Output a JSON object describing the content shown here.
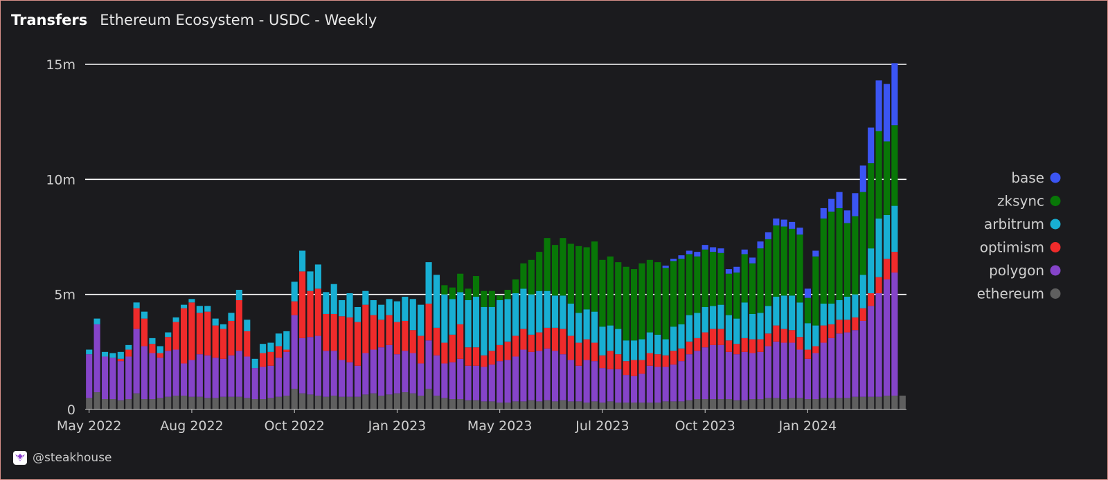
{
  "header": {
    "title": "Transfers",
    "subtitle": "Ethereum Ecosystem - USDC - Weekly"
  },
  "footer": {
    "handle": "@steakhouse"
  },
  "chart_data": {
    "type": "bar",
    "stacked": true,
    "grid": true,
    "legend_position": "right",
    "y_ticks": [
      "0",
      "5m",
      "10m",
      "15m"
    ],
    "ylim": [
      0,
      15.2
    ],
    "x_tick_labels": [
      {
        "label": "May 2022",
        "index": 0
      },
      {
        "label": "Aug 2022",
        "index": 13
      },
      {
        "label": "Oct 2022",
        "index": 26
      },
      {
        "label": "Jan 2023",
        "index": 39
      },
      {
        "label": "May 2023",
        "index": 52
      },
      {
        "label": "Jul 2023",
        "index": 65
      },
      {
        "label": "Oct 2023",
        "index": 78
      },
      {
        "label": "Jan 2024",
        "index": 91
      }
    ],
    "series": [
      {
        "name": "ethereum",
        "color": "#5f5f5f",
        "values": [
          0.5,
          0.75,
          0.45,
          0.45,
          0.4,
          0.45,
          0.7,
          0.45,
          0.45,
          0.5,
          0.55,
          0.6,
          0.6,
          0.55,
          0.55,
          0.5,
          0.5,
          0.55,
          0.55,
          0.55,
          0.5,
          0.45,
          0.45,
          0.5,
          0.55,
          0.6,
          0.9,
          0.7,
          0.65,
          0.6,
          0.55,
          0.6,
          0.55,
          0.55,
          0.55,
          0.65,
          0.7,
          0.6,
          0.65,
          0.7,
          0.75,
          0.7,
          0.6,
          0.9,
          0.6,
          0.5,
          0.45,
          0.45,
          0.4,
          0.4,
          0.35,
          0.35,
          0.3,
          0.3,
          0.35,
          0.35,
          0.4,
          0.35,
          0.4,
          0.35,
          0.4,
          0.35,
          0.35,
          0.3,
          0.35,
          0.3,
          0.35,
          0.3,
          0.3,
          0.3,
          0.3,
          0.3,
          0.3,
          0.35,
          0.35,
          0.35,
          0.4,
          0.45,
          0.45,
          0.45,
          0.45,
          0.45,
          0.4,
          0.4,
          0.45,
          0.45,
          0.5,
          0.5,
          0.45,
          0.5,
          0.5,
          0.45,
          0.45,
          0.5,
          0.5,
          0.5,
          0.5,
          0.55,
          0.55,
          0.55,
          0.55,
          0.6,
          0.6,
          0.6
        ]
      },
      {
        "name": "polygon",
        "color": "#8544c9",
        "values": [
          1.9,
          2.95,
          1.85,
          1.8,
          1.7,
          1.85,
          2.8,
          2.3,
          2.0,
          1.75,
          2.0,
          2.0,
          1.4,
          1.6,
          1.85,
          1.85,
          1.75,
          1.65,
          1.8,
          2.0,
          1.8,
          1.35,
          1.4,
          1.4,
          1.7,
          1.9,
          3.2,
          2.4,
          2.5,
          2.6,
          2.0,
          1.95,
          1.6,
          1.5,
          1.35,
          1.8,
          1.9,
          2.1,
          2.15,
          1.7,
          1.8,
          1.75,
          1.4,
          2.1,
          1.75,
          1.5,
          1.6,
          1.75,
          1.5,
          1.5,
          1.5,
          1.6,
          1.8,
          1.85,
          1.95,
          2.25,
          2.1,
          2.2,
          2.25,
          2.2,
          2.0,
          1.8,
          1.55,
          1.85,
          1.75,
          1.5,
          1.4,
          1.45,
          1.2,
          1.15,
          1.25,
          1.6,
          1.55,
          1.5,
          1.6,
          1.75,
          2.0,
          2.1,
          2.25,
          2.35,
          2.35,
          2.05,
          2.0,
          2.1,
          2.0,
          2.05,
          2.25,
          2.45,
          2.45,
          2.4,
          2.1,
          1.75,
          2.0,
          2.4,
          2.6,
          2.8,
          2.85,
          2.9,
          3.3,
          3.95,
          4.5,
          5.05,
          5.35
        ]
      },
      {
        "name": "optimism",
        "color": "#ef2b2b",
        "values": [
          0.0,
          0.0,
          0.0,
          0.0,
          0.1,
          0.3,
          0.9,
          1.2,
          0.4,
          0.2,
          0.6,
          1.2,
          2.4,
          2.5,
          1.8,
          1.9,
          1.4,
          1.3,
          1.5,
          2.2,
          1.1,
          0.0,
          0.6,
          0.6,
          0.5,
          0.1,
          0.6,
          2.9,
          2.0,
          2.05,
          1.6,
          1.6,
          1.9,
          1.95,
          1.9,
          2.1,
          1.5,
          1.2,
          1.3,
          1.4,
          1.3,
          1.0,
          1.2,
          1.6,
          1.2,
          0.9,
          1.2,
          1.5,
          0.8,
          0.8,
          0.5,
          0.6,
          0.7,
          0.8,
          0.9,
          0.9,
          0.75,
          0.8,
          0.9,
          1.0,
          1.1,
          1.05,
          1.0,
          0.9,
          0.8,
          0.55,
          0.8,
          0.65,
          0.6,
          0.7,
          0.6,
          0.55,
          0.55,
          0.5,
          0.6,
          0.55,
          0.55,
          0.55,
          0.65,
          0.7,
          0.7,
          0.5,
          0.45,
          0.6,
          0.6,
          0.55,
          0.55,
          0.7,
          0.6,
          0.55,
          0.55,
          0.4,
          0.3,
          0.75,
          0.6,
          0.6,
          0.55,
          0.55,
          0.55,
          0.55,
          0.7,
          0.9,
          0.9
        ]
      },
      {
        "name": "arbitrum",
        "color": "#18afd3",
        "values": [
          0.2,
          0.25,
          0.2,
          0.2,
          0.3,
          0.2,
          0.25,
          0.3,
          0.25,
          0.3,
          0.2,
          0.2,
          0.15,
          0.15,
          0.3,
          0.25,
          0.3,
          0.2,
          0.35,
          0.45,
          0.5,
          0.4,
          0.4,
          0.4,
          0.55,
          0.8,
          0.85,
          0.9,
          0.85,
          1.05,
          0.95,
          1.3,
          0.7,
          1.05,
          0.65,
          0.6,
          0.65,
          0.65,
          0.7,
          0.9,
          1.05,
          1.35,
          1.35,
          1.8,
          2.3,
          2.1,
          1.55,
          1.4,
          2.05,
          2.2,
          2.1,
          1.9,
          1.95,
          1.85,
          1.85,
          1.75,
          1.75,
          1.8,
          1.6,
          1.4,
          1.45,
          1.4,
          1.3,
          1.3,
          1.35,
          1.25,
          1.1,
          1.1,
          0.9,
          0.85,
          0.9,
          0.9,
          0.85,
          0.7,
          1.05,
          1.05,
          1.15,
          1.1,
          1.1,
          1.0,
          1.05,
          1.1,
          1.1,
          1.55,
          1.1,
          1.15,
          1.2,
          1.25,
          1.45,
          1.5,
          1.5,
          1.15,
          0.9,
          0.95,
          0.9,
          0.85,
          1.0,
          1.0,
          1.45,
          1.95,
          2.55,
          1.9,
          2.0
        ]
      },
      {
        "name": "zksync",
        "color": "#087707",
        "values": [
          0.0,
          0.0,
          0.0,
          0.0,
          0.0,
          0.0,
          0.0,
          0.0,
          0.0,
          0.0,
          0.0,
          0.0,
          0.0,
          0.0,
          0.0,
          0.0,
          0.0,
          0.0,
          0.0,
          0.0,
          0.0,
          0.0,
          0.0,
          0.0,
          0.0,
          0.0,
          0.0,
          0.0,
          0.0,
          0.0,
          0.0,
          0.0,
          0.0,
          0.0,
          0.0,
          0.0,
          0.0,
          0.0,
          0.0,
          0.0,
          0.0,
          0.0,
          0.0,
          0.0,
          0.0,
          0.4,
          0.5,
          0.8,
          0.5,
          0.9,
          0.7,
          0.7,
          0.2,
          0.4,
          0.6,
          1.1,
          1.5,
          1.7,
          2.3,
          2.2,
          2.5,
          2.6,
          2.9,
          2.7,
          3.05,
          2.9,
          3.0,
          2.9,
          3.2,
          3.1,
          3.3,
          3.15,
          3.15,
          3.1,
          2.85,
          2.85,
          2.65,
          2.45,
          2.5,
          2.35,
          2.25,
          1.8,
          2.0,
          2.1,
          2.2,
          2.8,
          2.9,
          3.1,
          3.0,
          2.9,
          2.95,
          1.1,
          3.0,
          3.7,
          4.0,
          4.0,
          3.2,
          3.4,
          3.6,
          3.7,
          3.8,
          3.2,
          3.5
        ]
      },
      {
        "name": "base",
        "color": "#3b55f3",
        "values": [
          0.0,
          0.0,
          0.0,
          0.0,
          0.0,
          0.0,
          0.0,
          0.0,
          0.0,
          0.0,
          0.0,
          0.0,
          0.0,
          0.0,
          0.0,
          0.0,
          0.0,
          0.0,
          0.0,
          0.0,
          0.0,
          0.0,
          0.0,
          0.0,
          0.0,
          0.0,
          0.0,
          0.0,
          0.0,
          0.0,
          0.0,
          0.0,
          0.0,
          0.0,
          0.0,
          0.0,
          0.0,
          0.0,
          0.0,
          0.0,
          0.0,
          0.0,
          0.0,
          0.0,
          0.0,
          0.0,
          0.0,
          0.0,
          0.0,
          0.0,
          0.0,
          0.0,
          0.0,
          0.0,
          0.0,
          0.0,
          0.0,
          0.0,
          0.0,
          0.0,
          0.0,
          0.0,
          0.0,
          0.0,
          0.0,
          0.0,
          0.0,
          0.0,
          0.0,
          0.0,
          0.0,
          0.0,
          0.0,
          0.1,
          0.1,
          0.15,
          0.15,
          0.2,
          0.2,
          0.2,
          0.2,
          0.2,
          0.25,
          0.2,
          0.25,
          0.3,
          0.3,
          0.3,
          0.3,
          0.3,
          0.3,
          0.4,
          0.25,
          0.45,
          0.55,
          0.7,
          0.55,
          1.0,
          1.15,
          1.55,
          2.2,
          2.5,
          2.7
        ]
      }
    ]
  }
}
